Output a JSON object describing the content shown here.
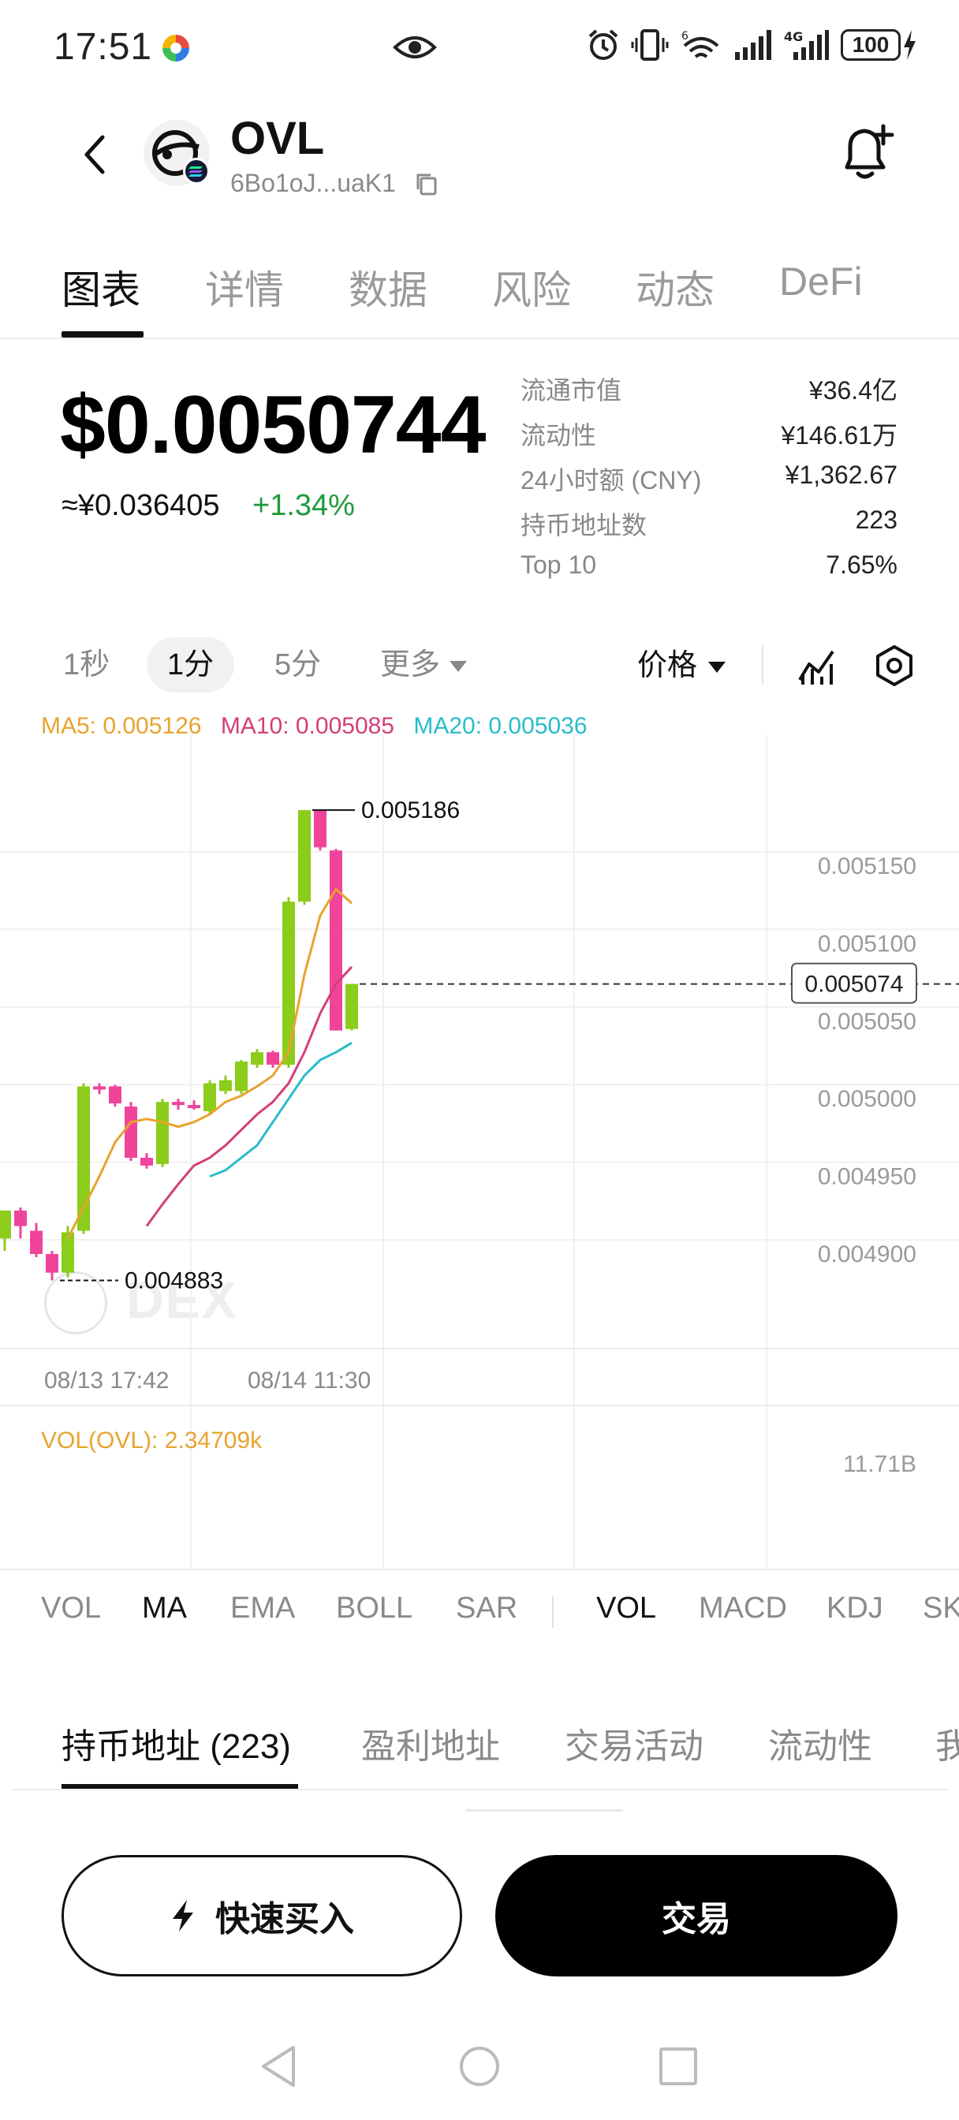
{
  "status_bar": {
    "time": "17:51",
    "battery": "100",
    "network_label": "4G",
    "wifi_label": "6"
  },
  "header": {
    "symbol": "OVL",
    "address": "6Bo1oJ...uaK1"
  },
  "tabs": [
    "图表",
    "详情",
    "数据",
    "风险",
    "动态",
    "DeFi"
  ],
  "price": {
    "usd": "$0.0050744",
    "cny": "≈¥0.036405",
    "change": "+1.34%"
  },
  "stats": [
    {
      "label": "流通市值",
      "value": "¥36.4亿"
    },
    {
      "label": "流动性",
      "value": "¥146.61万"
    },
    {
      "label": "24小时额 (CNY)",
      "value": "¥1,362.67"
    },
    {
      "label": "持币地址数",
      "value": "223"
    },
    {
      "label": "Top 10",
      "value": "7.65%"
    }
  ],
  "intervals": {
    "items": [
      "1秒",
      "1分",
      "5分"
    ],
    "more": "更多",
    "selected": "1分",
    "price_mode": "价格"
  },
  "chart_data": {
    "type": "candlestick",
    "ma_legend": {
      "ma5": "MA5: 0.005126",
      "ma10": "MA10: 0.005085",
      "ma20": "MA20: 0.005036"
    },
    "y_ticks": [
      "0.005150",
      "0.005100",
      "0.005050",
      "0.005000",
      "0.004950",
      "0.004900"
    ],
    "y_tick_values": [
      0.00515,
      0.0051,
      0.00505,
      0.005,
      0.00495,
      0.0049
    ],
    "x_ticks": [
      "08/13 17:42",
      "08/14 11:30"
    ],
    "current_price": "0.005074",
    "current_price_value": 0.005074,
    "high_label": "0.005186",
    "high_value": 0.005186,
    "low_label": "0.004883",
    "low_value": 0.004883,
    "candles": [
      {
        "o": 0.00491,
        "h": 0.004928,
        "l": 0.004902,
        "c": 0.004928,
        "up": true
      },
      {
        "o": 0.004928,
        "h": 0.00493,
        "l": 0.00491,
        "c": 0.004918,
        "up": false
      },
      {
        "o": 0.004915,
        "h": 0.00492,
        "l": 0.004898,
        "c": 0.0049,
        "up": false
      },
      {
        "o": 0.0049,
        "h": 0.004902,
        "l": 0.004883,
        "c": 0.004888,
        "up": false
      },
      {
        "o": 0.004888,
        "h": 0.004918,
        "l": 0.004885,
        "c": 0.004914,
        "up": true
      },
      {
        "o": 0.004915,
        "h": 0.00501,
        "l": 0.004913,
        "c": 0.005008,
        "up": true
      },
      {
        "o": 0.005008,
        "h": 0.00501,
        "l": 0.005003,
        "c": 0.005006,
        "up": false
      },
      {
        "o": 0.005008,
        "h": 0.005009,
        "l": 0.004995,
        "c": 0.004997,
        "up": false
      },
      {
        "o": 0.004995,
        "h": 0.004998,
        "l": 0.00496,
        "c": 0.004962,
        "up": false
      },
      {
        "o": 0.004962,
        "h": 0.004965,
        "l": 0.004955,
        "c": 0.004957,
        "up": false
      },
      {
        "o": 0.004958,
        "h": 0.005,
        "l": 0.004956,
        "c": 0.004998,
        "up": true
      },
      {
        "o": 0.004998,
        "h": 0.005,
        "l": 0.004993,
        "c": 0.004996,
        "up": false
      },
      {
        "o": 0.004996,
        "h": 0.004999,
        "l": 0.004993,
        "c": 0.004994,
        "up": false
      },
      {
        "o": 0.004992,
        "h": 0.005012,
        "l": 0.00499,
        "c": 0.00501,
        "up": true
      },
      {
        "o": 0.005005,
        "h": 0.005015,
        "l": 0.005003,
        "c": 0.005012,
        "up": true
      },
      {
        "o": 0.005005,
        "h": 0.005025,
        "l": 0.005003,
        "c": 0.005024,
        "up": true
      },
      {
        "o": 0.005022,
        "h": 0.005032,
        "l": 0.00502,
        "c": 0.00503,
        "up": true
      },
      {
        "o": 0.00503,
        "h": 0.005031,
        "l": 0.00502,
        "c": 0.005022,
        "up": false
      },
      {
        "o": 0.005022,
        "h": 0.00513,
        "l": 0.00502,
        "c": 0.005127,
        "up": true
      },
      {
        "o": 0.005127,
        "h": 0.005186,
        "l": 0.005125,
        "c": 0.005186,
        "up": true
      },
      {
        "o": 0.005186,
        "h": 0.005186,
        "l": 0.00516,
        "c": 0.005162,
        "up": false
      },
      {
        "o": 0.00516,
        "h": 0.005161,
        "l": 0.005044,
        "c": 0.005044,
        "up": false
      },
      {
        "o": 0.005045,
        "h": 0.005074,
        "l": 0.005044,
        "c": 0.005074,
        "up": true
      }
    ],
    "ma5": [
      null,
      null,
      null,
      null,
      0.00491,
      0.00493,
      0.00495,
      0.004972,
      0.004985,
      0.004987,
      0.004985,
      0.004982,
      0.004985,
      0.00499,
      0.004998,
      0.005002,
      0.005008,
      0.005015,
      0.00503,
      0.00508,
      0.005118,
      0.005135,
      0.005126
    ],
    "ma10": [
      null,
      null,
      null,
      null,
      null,
      null,
      null,
      null,
      null,
      0.004918,
      0.004932,
      0.004945,
      0.004957,
      0.004962,
      0.00497,
      0.00498,
      0.00499,
      0.004998,
      0.00501,
      0.00503,
      0.005055,
      0.005074,
      0.005085
    ],
    "ma20": [
      null,
      null,
      null,
      null,
      null,
      null,
      null,
      null,
      null,
      null,
      null,
      null,
      null,
      0.00495,
      0.004954,
      0.004962,
      0.00497,
      0.004985,
      0.005,
      0.005015,
      0.005025,
      0.00503,
      0.005036
    ],
    "volume": {
      "label": "VOL(OVL): 2.34709k",
      "max_label": "11.71B"
    },
    "watermark": "DEX"
  },
  "indicators": {
    "main": [
      "VOL",
      "MA",
      "EMA",
      "BOLL",
      "SAR"
    ],
    "sub": [
      "VOL",
      "MACD",
      "KDJ",
      "SK"
    ],
    "main_selected": "MA",
    "sub_selected": "VOL"
  },
  "holder_tabs": [
    "持币地址 (223)",
    "盈利地址",
    "交易活动",
    "流动性",
    "我"
  ],
  "buttons": {
    "quick_buy": "快速买入",
    "trade": "交易"
  },
  "colors": {
    "up": "#8ccc1a",
    "down": "#f0449b",
    "ma5": "#e8a330",
    "ma10": "#d43f78",
    "ma20": "#28bdc9",
    "positive_text": "#1f9a3c"
  }
}
